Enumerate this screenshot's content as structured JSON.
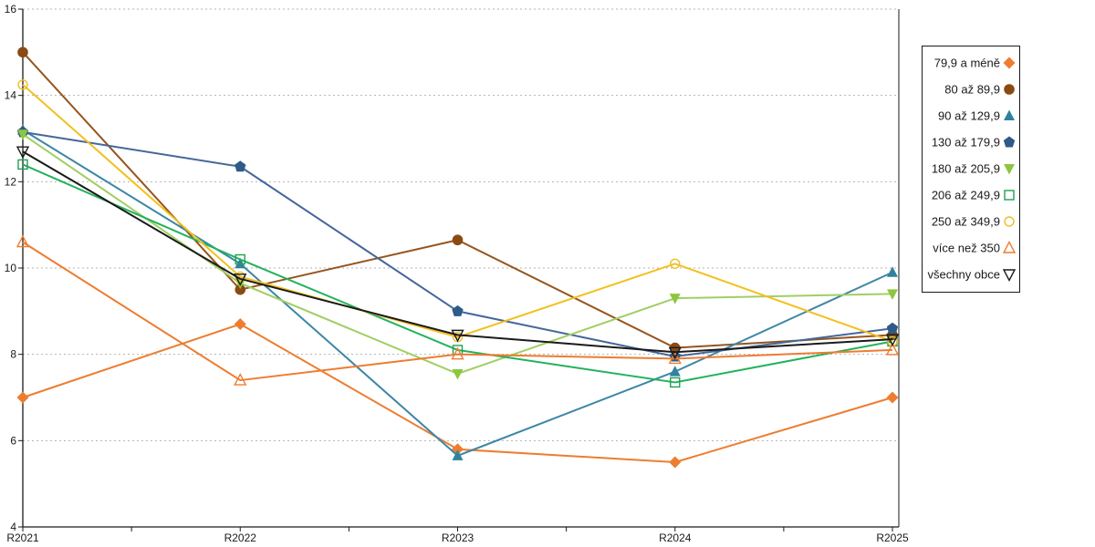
{
  "chart_data": {
    "type": "line",
    "title": "",
    "xlabel": "",
    "ylabel": "",
    "categories": [
      "R2021",
      "R2022",
      "R2023",
      "R2024",
      "R2025"
    ],
    "ylim": [
      4,
      16
    ],
    "yticks": [
      4,
      6,
      8,
      10,
      12,
      14,
      16
    ],
    "grid": "horizontal dotted gridlines at each y tick",
    "x_minor_ticks_between_categories": true,
    "legend_position": "right",
    "axis_color": "#1A1A1A",
    "gridline_color": "#B3B3B3",
    "series": [
      {
        "name": "79,9 a méně",
        "marker": "diamond",
        "marker_style": "filled",
        "color": "#ED7D31",
        "line_color": "#ED7D31",
        "values": [
          7.0,
          8.7,
          5.8,
          5.5,
          7.0
        ]
      },
      {
        "name": "80 až 89,9",
        "marker": "circle",
        "marker_style": "filled",
        "color": "#8A4A14",
        "line_color": "#96551E",
        "values": [
          15.0,
          9.5,
          10.65,
          8.15,
          8.45
        ]
      },
      {
        "name": "90 až 129,9",
        "marker": "triangle-up",
        "marker_style": "filled",
        "color": "#31829E",
        "line_color": "#3C87A6",
        "values": [
          13.2,
          10.1,
          5.65,
          7.6,
          9.9
        ]
      },
      {
        "name": "130 až 179,9",
        "marker": "pentagon",
        "marker_style": "filled",
        "color": "#2E5B88",
        "line_color": "#44679B",
        "values": [
          13.15,
          12.35,
          9.0,
          7.95,
          8.6
        ]
      },
      {
        "name": "180 až 205,9",
        "marker": "triangle-down",
        "marker_style": "filled",
        "color": "#8DC63F",
        "line_color": "#A2CE63",
        "values": [
          13.1,
          9.65,
          7.55,
          9.3,
          9.4
        ]
      },
      {
        "name": "206 až 249,9",
        "marker": "square",
        "marker_style": "open",
        "color": "#1FA153",
        "line_color": "#22B25C",
        "values": [
          12.4,
          10.2,
          8.1,
          7.35,
          8.3
        ]
      },
      {
        "name": "250 až 349,9",
        "marker": "circle",
        "marker_style": "open",
        "color": "#EFBE2C",
        "line_color": "#F3C01F",
        "values": [
          14.25,
          9.8,
          8.4,
          10.1,
          8.3
        ]
      },
      {
        "name": "více než 350",
        "marker": "triangle-up",
        "marker_style": "open",
        "color": "#EE7C30",
        "line_color": "#EE7C30",
        "values": [
          10.6,
          7.4,
          8.0,
          7.9,
          8.1
        ]
      },
      {
        "name": "všechny obce",
        "marker": "triangle-down",
        "marker_style": "open",
        "color": "#1A1A1A",
        "line_color": "#1A1A1A",
        "values": [
          12.7,
          9.75,
          8.45,
          8.05,
          8.35
        ]
      }
    ]
  }
}
